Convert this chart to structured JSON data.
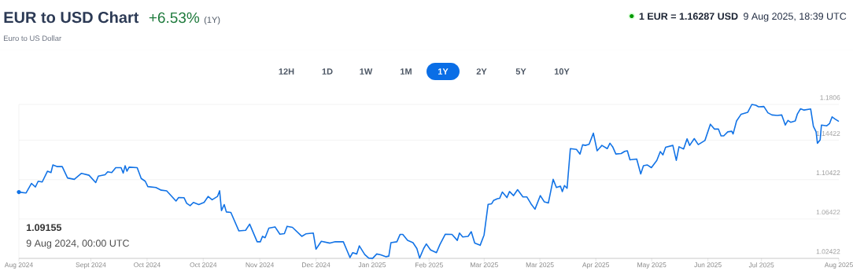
{
  "chart_data": {
    "type": "line",
    "title": "EUR to USD Chart",
    "subtitle": "Euro to US Dollar",
    "annotations": [
      "+6.53%",
      "(1Y)",
      "1 EUR = 1.16287 USD",
      "9 Aug 2025, 18:39 UTC",
      "12H",
      "1D",
      "1W",
      "1M",
      "1Y",
      "2Y",
      "5Y",
      "10Y",
      "1.09155",
      "9 Aug 2024, 00:00 UTC"
    ],
    "series": [
      {
        "type": "line",
        "color": "#1273e6",
        "x": [
          "2024-08-09T00:00",
          "2024-08-12T05:00",
          "2024-08-14T14:00",
          "2024-08-16T09:00",
          "2024-08-17T14:00",
          "2024-08-19T09:00",
          "2024-08-21T18:00",
          "2024-08-23T07:00",
          "2024-08-24T03:00",
          "2024-08-25T22:00",
          "2024-08-28T07:00",
          "2024-08-30T16:00",
          "2024-09-02T16:00",
          "2024-09-05T21:00",
          "2024-09-09T05:00",
          "2024-09-12T05:00",
          "2024-09-13T09:00",
          "2024-09-16T09:00",
          "2024-09-17T13:00",
          "2024-09-19T08:00",
          "2024-09-21T03:00",
          "2024-09-23T12:00",
          "2024-09-24T11:00",
          "2024-09-25T07:00",
          "2024-09-26T03:00",
          "2024-09-27T02:00",
          "2024-09-30T16:00",
          "2024-10-02T11:00",
          "2024-10-04T06:00",
          "2024-10-05T10:00",
          "2024-10-09T00:00",
          "2024-10-11T09:00",
          "2024-10-13T19:00",
          "2024-10-17T23:00",
          "2024-10-19T03:00",
          "2024-10-21T13:00",
          "2024-10-22T17:00",
          "2024-10-24T06:00",
          "2024-10-25T17:00",
          "2024-10-28T02:00",
          "2024-10-30T11:00",
          "2024-11-01T06:00",
          "2024-11-03T01:00",
          "2024-11-05T10:00",
          "2024-11-06T09:00",
          "2024-11-07T05:00",
          "2024-11-08T10:00",
          "2024-11-09T09:00",
          "2024-11-11T09:00",
          "2024-11-14T23:00",
          "2024-11-17T23:00",
          "2024-11-19T18:00",
          "2024-11-23T02:00",
          "2024-11-24T12:00",
          "2024-11-25T11:00",
          "2024-11-26T15:00",
          "2024-11-28T07:00",
          "2024-12-01T01:00",
          "2024-12-03T05:00",
          "2024-12-05T05:00",
          "2024-12-06T10:00",
          "2024-12-08T19:00",
          "2024-12-12T23:00",
          "2024-12-14T18:00",
          "2024-12-18T02:00",
          "2024-12-19T07:00",
          "2024-12-21T16:00",
          "2024-12-25T12:00",
          "2024-12-27T21:00",
          "2024-12-31T11:00",
          "2025-01-02T06:00",
          "2025-01-03T10:00",
          "2025-01-04T15:00",
          "2025-01-06T10:00",
          "2025-01-07T14:00",
          "2025-01-10T00:00",
          "2025-01-11T18:00",
          "2025-01-13T13:00",
          "2025-01-15T08:00",
          "2025-01-17T03:00",
          "2025-01-19T12:00",
          "2025-01-20T17:00",
          "2025-01-21T16:00",
          "2025-01-24T07:00",
          "2025-01-25T17:00",
          "2025-01-26T22:00",
          "2025-01-29T01:00",
          "2025-01-31T11:00",
          "2025-02-02T05:00",
          "2025-02-03T10:00",
          "2025-02-05T05:00",
          "2025-02-06T10:00",
          "2025-02-08T07:00",
          "2025-02-10T22:00",
          "2025-02-12T11:00",
          "2025-02-14T21:00",
          "2025-02-17T20:00",
          "2025-02-20T05:00",
          "2025-02-21T04:00",
          "2025-02-22T15:00",
          "2025-02-25T00:00",
          "2025-02-26T10:00",
          "2025-02-27T23:00",
          "2025-03-02T09:00",
          "2025-03-04T03:00",
          "2025-03-05T22:00",
          "2025-03-07T12:00",
          "2025-03-08T08:00",
          "2025-03-10T02:00",
          "2025-03-11T01:00",
          "2025-03-12T06:00",
          "2025-03-14T07:00",
          "2025-03-15T11:00",
          "2025-03-17T06:00",
          "2025-03-19T01:00",
          "2025-03-21T10:00",
          "2025-03-23T05:00",
          "2025-03-25T00:00",
          "2025-03-26T19:00",
          "2025-03-29T04:00",
          "2025-03-30T23:00",
          "2025-04-01T18:00",
          "2025-04-03T21:00",
          "2025-04-05T08:00",
          "2025-04-07T03:00",
          "2025-04-07T23:00",
          "2025-04-08T22:00",
          "2025-04-10T02:00",
          "2025-04-11T13:00",
          "2025-04-14T06:00",
          "2025-04-15T20:00",
          "2025-04-17T00:00",
          "2025-04-18T05:00",
          "2025-04-19T21:00",
          "2025-04-21T19:00",
          "2025-04-23T11:00",
          "2025-04-25T14:00",
          "2025-04-27T23:00",
          "2025-04-29T04:00",
          "2025-04-30T09:00",
          "2025-05-01T19:00",
          "2025-05-04T04:00",
          "2025-05-05T17:00",
          "2025-05-06T22:00",
          "2025-05-08T02:00",
          "2025-05-11T02:00",
          "2025-05-12T21:00",
          "2025-05-14T02:00",
          "2025-05-15T20:00",
          "2025-05-17T15:00",
          "2025-05-20T01:00",
          "2025-05-21T14:00",
          "2025-05-22T18:00",
          "2025-05-23T23:00",
          "2025-05-27T04:00",
          "2025-05-28T17:00",
          "2025-05-29T22:00",
          "2025-05-31T23:00",
          "2025-06-02T12:00",
          "2025-06-03T16:00",
          "2025-06-05T17:00",
          "2025-06-07T12:00",
          "2025-06-10T11:00",
          "2025-06-12T21:00",
          "2025-06-14T16:00",
          "2025-06-16T11:00",
          "2025-06-17T15:00",
          "2025-06-18T20:00",
          "2025-06-20T15:00",
          "2025-06-22T10:00",
          "2025-06-23T00:00",
          "2025-06-24T13:00",
          "2025-06-26T14:00",
          "2025-06-29T13:00",
          "2025-07-01T08:00",
          "2025-07-03T03:00",
          "2025-07-04T08:00",
          "2025-07-06T17:00",
          "2025-07-08T12:00",
          "2025-07-10T07:00",
          "2025-07-12T16:00",
          "2025-07-14T16:00",
          "2025-07-16T06:00",
          "2025-07-17T10:00",
          "2025-07-18T15:00",
          "2025-07-20T16:00",
          "2025-07-21T14:00",
          "2025-07-23T01:00",
          "2025-07-24T14:00",
          "2025-07-27T13:00",
          "2025-07-28T18:00",
          "2025-07-29T23:00",
          "2025-07-30T13:00",
          "2025-07-31T18:00",
          "2025-08-01T08:00",
          "2025-08-03T17:00",
          "2025-08-04T22:00",
          "2025-08-06T02:00",
          "2025-08-07T07:00",
          "2025-08-09T02:00"
        ],
        "values": [
          1.09155,
          1.0907,
          1.1004,
          1.0968,
          1.1026,
          1.1018,
          1.1128,
          1.1114,
          1.1191,
          1.1175,
          1.1175,
          1.1059,
          1.1045,
          1.1106,
          1.1087,
          1.1012,
          1.1078,
          1.1092,
          1.1122,
          1.1114,
          1.1164,
          1.1164,
          1.1109,
          1.1183,
          1.1128,
          1.1169,
          1.1164,
          1.1054,
          1.1026,
          1.0971,
          1.0962,
          1.0935,
          1.0929,
          1.0825,
          1.086,
          1.0858,
          1.0802,
          1.0778,
          1.0811,
          1.0789,
          1.0811,
          1.0871,
          1.0838,
          1.0871,
          1.0929,
          1.0728,
          1.0789,
          1.0714,
          1.0709,
          1.0521,
          1.0527,
          1.059,
          1.0411,
          1.0411,
          1.0466,
          1.0452,
          1.0549,
          1.0562,
          1.0488,
          1.0494,
          1.0568,
          1.0557,
          1.0466,
          1.0491,
          1.0499,
          1.0336,
          1.0416,
          1.0397,
          1.0411,
          1.0411,
          1.0314,
          1.0251,
          1.03,
          1.0287,
          1.0369,
          1.0281,
          1.0245,
          1.0243,
          1.0287,
          1.0278,
          1.0259,
          1.0265,
          1.0402,
          1.0411,
          1.0485,
          1.0485,
          1.0425,
          1.0402,
          1.0342,
          1.0245,
          1.0342,
          1.0389,
          1.0328,
          1.03,
          1.0383,
          1.0488,
          1.0485,
          1.0425,
          1.0499,
          1.046,
          1.0466,
          1.0513,
          1.0397,
          1.0375,
          1.048,
          1.0791,
          1.0797,
          1.083,
          1.0849,
          1.0852,
          1.0916,
          1.086,
          1.0921,
          1.088,
          1.094,
          1.0866,
          1.0866,
          1.0797,
          1.0742,
          1.088,
          1.0816,
          1.0805,
          1.1045,
          1.0962,
          1.0976,
          1.0921,
          1.0982,
          1.0954,
          1.1357,
          1.1349,
          1.1302,
          1.1396,
          1.139,
          1.1401,
          1.1514,
          1.1335,
          1.139,
          1.1357,
          1.1412,
          1.1376,
          1.1302,
          1.1307,
          1.1329,
          1.1335,
          1.1244,
          1.1252,
          1.11,
          1.1183,
          1.1191,
          1.1164,
          1.1238,
          1.1327,
          1.1294,
          1.1371,
          1.139,
          1.1238,
          1.1376,
          1.1354,
          1.1456,
          1.139,
          1.1459,
          1.1398,
          1.144,
          1.1605,
          1.1556,
          1.1556,
          1.1487,
          1.1487,
          1.1528,
          1.1534,
          1.1506,
          1.1638,
          1.1707,
          1.1727,
          1.1806,
          1.1798,
          1.1782,
          1.1785,
          1.1721,
          1.1699,
          1.1694,
          1.1699,
          1.1597,
          1.1644,
          1.1625,
          1.1638,
          1.1707,
          1.1762,
          1.1749,
          1.176,
          1.1583,
          1.1528,
          1.1412,
          1.1445,
          1.1597,
          1.1589,
          1.1611,
          1.168,
          1.166,
          1.1633
        ]
      }
    ],
    "xlim": [
      "2024-08-09T00:00",
      "2025-08-09T02:00"
    ],
    "xticks": [
      {
        "value": "2024-08-09T00:00",
        "label": "Aug 2024"
      },
      {
        "value": "2024-09-10T01:00",
        "label": "Sept 2024"
      },
      {
        "value": "2024-10-05T02:00",
        "label": "Oct 2024"
      },
      {
        "value": "2024-10-30T02:00",
        "label": "Oct 2024"
      },
      {
        "value": "2024-11-24T06:00",
        "label": "Nov 2024"
      },
      {
        "value": "2024-12-19T07:00",
        "label": "Dec 2024"
      },
      {
        "value": "2025-01-13T07:00",
        "label": "Jan 2025"
      },
      {
        "value": "2025-02-07T15:00",
        "label": "Feb 2025"
      },
      {
        "value": "2025-03-04T04:00",
        "label": "Mar 2025"
      },
      {
        "value": "2025-03-28T23:00",
        "label": "Mar 2025"
      },
      {
        "value": "2025-04-22T21:00",
        "label": "Apr 2025"
      },
      {
        "value": "2025-05-17T18:00",
        "label": "May 2025"
      },
      {
        "value": "2025-06-11T19:00",
        "label": "Jun 2025"
      },
      {
        "value": "2025-07-05T15:00",
        "label": "Jul 2025"
      },
      {
        "value": "2025-08-09T02:00",
        "label": "Aug 2025"
      }
    ],
    "ylim": [
      1.02422,
      1.1806
    ],
    "yticks": [
      1.02422,
      1.06422,
      1.10422,
      1.14422,
      1.1806
    ],
    "grid": "y"
  }
}
